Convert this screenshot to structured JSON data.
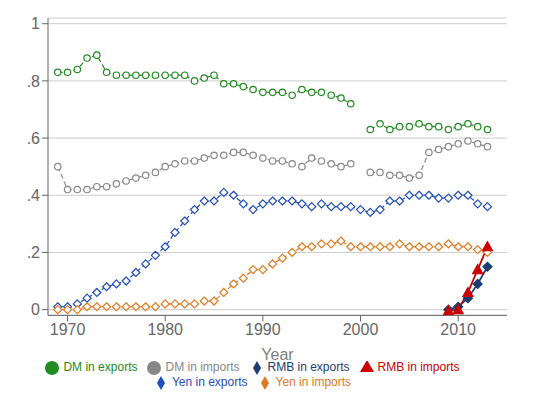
{
  "chart_data": {
    "type": "line",
    "x_label": "Year",
    "grid": "y",
    "legend": "bottom",
    "x": [
      1969,
      1970,
      1971,
      1972,
      1973,
      1974,
      1975,
      1976,
      1977,
      1978,
      1979,
      1980,
      1981,
      1982,
      1983,
      1984,
      1985,
      1986,
      1987,
      1988,
      1989,
      1990,
      1991,
      1992,
      1993,
      1994,
      1995,
      1996,
      1997,
      1998,
      1999,
      2000,
      2001,
      2002,
      2003,
      2004,
      2005,
      2006,
      2007,
      2008,
      2009,
      2010,
      2011,
      2012,
      2013
    ],
    "xlim": [
      1968,
      2015
    ],
    "xticks": [
      1970,
      1980,
      1990,
      2000,
      2010
    ],
    "ylim": [
      -0.02,
      1.02
    ],
    "yticks": [
      0,
      {
        "value": 0.2,
        "label": ".2"
      },
      {
        "value": 0.4,
        "label": ".4"
      },
      {
        "value": 0.6,
        "label": ".6"
      },
      {
        "value": 0.8,
        "label": ".8"
      },
      1
    ],
    "series": [
      {
        "name": "Yen in exports",
        "color": "#1f4dba",
        "marker": "open_diamond",
        "line_style": "dashed",
        "values": [
          0.01,
          0.01,
          0.02,
          0.04,
          0.06,
          0.08,
          0.09,
          0.1,
          0.13,
          0.16,
          0.19,
          0.22,
          0.27,
          0.31,
          0.35,
          0.38,
          0.38,
          0.41,
          0.4,
          0.37,
          0.35,
          0.37,
          0.38,
          0.38,
          0.38,
          0.37,
          0.36,
          0.37,
          0.36,
          0.36,
          0.36,
          0.35,
          0.34,
          0.35,
          0.38,
          0.38,
          0.4,
          0.4,
          0.4,
          0.39,
          0.39,
          0.4,
          0.4,
          0.37,
          0.36
        ]
      },
      {
        "name": "Yen in imports",
        "color": "#e07a20",
        "marker": "open_diamond",
        "line_style": "dashed",
        "values": [
          0.0,
          0.0,
          0.0,
          0.01,
          0.01,
          0.01,
          0.01,
          0.01,
          0.01,
          0.01,
          0.01,
          0.02,
          0.02,
          0.02,
          0.02,
          0.03,
          0.03,
          0.06,
          0.09,
          0.11,
          0.14,
          0.14,
          0.16,
          0.18,
          0.2,
          0.22,
          0.22,
          0.23,
          0.23,
          0.24,
          0.22,
          0.22,
          0.22,
          0.22,
          0.22,
          0.23,
          0.22,
          0.22,
          0.22,
          0.22,
          0.23,
          0.22,
          0.22,
          0.21,
          0.2
        ]
      },
      {
        "name": "DM in exports",
        "color": "#228B22",
        "marker": "open_circle",
        "line_style": "dashed",
        "values": [
          0.83,
          0.83,
          0.84,
          0.88,
          0.89,
          0.83,
          0.82,
          0.82,
          0.82,
          0.82,
          0.82,
          0.82,
          0.82,
          0.82,
          0.8,
          0.81,
          0.82,
          0.79,
          0.79,
          0.78,
          0.77,
          0.76,
          0.76,
          0.76,
          0.75,
          0.77,
          0.76,
          0.76,
          0.75,
          0.74,
          0.72,
          null,
          0.63,
          0.65,
          0.63,
          0.64,
          0.64,
          0.65,
          0.64,
          0.64,
          0.63,
          0.64,
          0.65,
          0.64,
          0.63
        ]
      },
      {
        "name": "DM in imports",
        "color": "#888888",
        "marker": "open_circle",
        "line_style": "dashed",
        "values": [
          0.5,
          0.42,
          0.42,
          0.42,
          0.43,
          0.43,
          0.44,
          0.45,
          0.46,
          0.47,
          0.48,
          0.5,
          0.51,
          0.52,
          0.52,
          0.53,
          0.54,
          0.54,
          0.55,
          0.55,
          0.54,
          0.53,
          0.52,
          0.52,
          0.51,
          0.5,
          0.53,
          0.52,
          0.51,
          0.5,
          0.51,
          null,
          0.48,
          0.48,
          0.47,
          0.47,
          0.46,
          0.47,
          0.55,
          0.56,
          0.57,
          0.58,
          0.59,
          0.58,
          0.57
        ]
      },
      {
        "name": "RMB in exports",
        "color": "#1c3d6e",
        "marker": "diamond",
        "line_style": "solid",
        "values": [
          null,
          null,
          null,
          null,
          null,
          null,
          null,
          null,
          null,
          null,
          null,
          null,
          null,
          null,
          null,
          null,
          null,
          null,
          null,
          null,
          null,
          null,
          null,
          null,
          null,
          null,
          null,
          null,
          null,
          null,
          null,
          null,
          null,
          null,
          null,
          null,
          null,
          null,
          null,
          null,
          0.0,
          0.01,
          0.04,
          0.09,
          0.15
        ]
      },
      {
        "name": "RMB in imports",
        "color": "#cc0000",
        "marker": "triangle",
        "line_style": "solid",
        "values": [
          null,
          null,
          null,
          null,
          null,
          null,
          null,
          null,
          null,
          null,
          null,
          null,
          null,
          null,
          null,
          null,
          null,
          null,
          null,
          null,
          null,
          null,
          null,
          null,
          null,
          null,
          null,
          null,
          null,
          null,
          null,
          null,
          null,
          null,
          null,
          null,
          null,
          null,
          null,
          null,
          -0.005,
          0.0,
          0.06,
          0.14,
          0.22
        ]
      }
    ]
  }
}
